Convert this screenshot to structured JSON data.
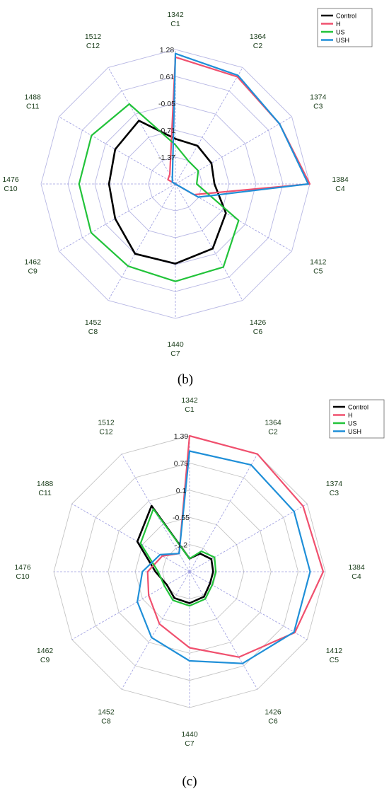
{
  "colors": {
    "Control": "#000000",
    "H": "#f0506e",
    "US": "#22c33a",
    "USH": "#1f8fd8",
    "grid_b": "#b8b8e4",
    "grid_c": "#c4c4c4",
    "axis_spoke": "#9c9ce0"
  },
  "chart_data": [
    {
      "type": "radar",
      "panel_label": "(b)",
      "categories": [
        [
          "1342",
          "C1"
        ],
        [
          "1364",
          "C2"
        ],
        [
          "1374",
          "C3"
        ],
        [
          "1384",
          "C4"
        ],
        [
          "1412",
          "C5"
        ],
        [
          "1426",
          "C6"
        ],
        [
          "1440",
          "C7"
        ],
        [
          "1452",
          "C8"
        ],
        [
          "1462",
          "C9"
        ],
        [
          "1476",
          "C10"
        ],
        [
          "1488",
          "C11"
        ],
        [
          "1512",
          "C12"
        ]
      ],
      "r_ticks": [
        "1.28",
        "0.61",
        "-0.05",
        "-0.71",
        "-1.37"
      ],
      "r_range": [
        -1.37,
        1.28
      ],
      "grid_rings": 5,
      "legend_position": "top-right",
      "series": [
        {
          "name": "Control",
          "values": [
            -0.48,
            -0.5,
            -0.55,
            -0.6,
            -0.22,
            0.1,
            0.2,
            0.22,
            0.0,
            -0.06,
            0.0,
            0.07
          ]
        },
        {
          "name": "H",
          "values": [
            1.13,
            1.07,
            1.0,
            1.28,
            -0.95,
            -1.37,
            -1.37,
            -1.37,
            -1.37,
            -1.37,
            -1.2,
            -1.15
          ]
        },
        {
          "name": "US",
          "values": [
            -0.6,
            -0.85,
            -0.85,
            -0.95,
            0.07,
            0.52,
            0.55,
            0.5,
            0.55,
            0.53,
            0.54,
            0.45
          ]
        },
        {
          "name": "USH",
          "values": [
            1.2,
            1.1,
            1.0,
            1.25,
            -0.85,
            -1.37,
            -1.37,
            -1.37,
            -1.37,
            -1.37,
            -1.3,
            -1.25
          ]
        }
      ]
    },
    {
      "type": "radar",
      "panel_label": "(c)",
      "categories": [
        [
          "1342",
          "C1"
        ],
        [
          "1364",
          "C2"
        ],
        [
          "1374",
          "C3"
        ],
        [
          "1384",
          "C4"
        ],
        [
          "1412",
          "C5"
        ],
        [
          "1426",
          "C6"
        ],
        [
          "1440",
          "C7"
        ],
        [
          "1452",
          "C8"
        ],
        [
          "1462",
          "C9"
        ],
        [
          "1476",
          "C10"
        ],
        [
          "1488",
          "C11"
        ],
        [
          "1512",
          "C12"
        ]
      ],
      "r_ticks": [
        "1.39",
        "0.75",
        "0.1",
        "-0.55",
        "-1.2"
      ],
      "r_range": [
        -1.2,
        1.39
      ],
      "grid_rings": 5,
      "legend_position": "top-right",
      "series": [
        {
          "name": "Control",
          "values": [
            -0.95,
            -0.8,
            -0.72,
            -0.75,
            -0.75,
            -0.65,
            -0.6,
            -0.62,
            -0.7,
            -0.55,
            -0.05,
            0.25
          ]
        },
        {
          "name": "H",
          "values": [
            1.39,
            1.39,
            1.3,
            1.35,
            1.12,
            0.68,
            0.25,
            -0.05,
            -0.3,
            -0.4,
            -0.6,
            -0.8
          ]
        },
        {
          "name": "US",
          "values": [
            -0.95,
            -0.75,
            -0.65,
            -0.7,
            -0.7,
            -0.6,
            -0.55,
            -0.57,
            -0.65,
            -0.6,
            -0.12,
            0.18
          ]
        },
        {
          "name": "USH",
          "values": [
            1.1,
            1.15,
            1.1,
            1.1,
            1.1,
            0.82,
            0.5,
            0.25,
            -0.05,
            -0.3,
            -0.55,
            -0.8
          ]
        }
      ]
    }
  ]
}
